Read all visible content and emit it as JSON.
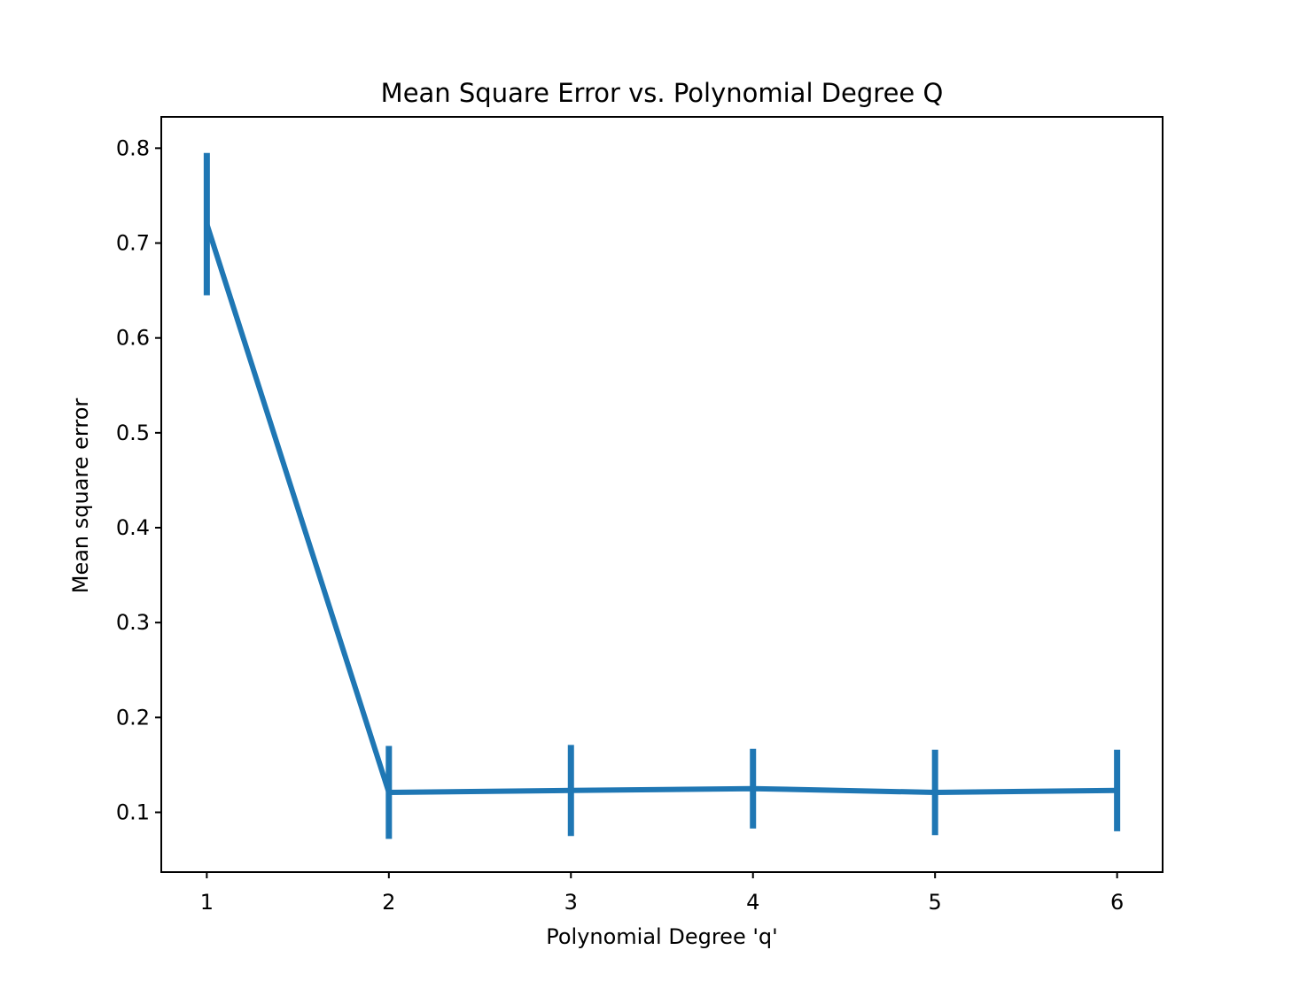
{
  "chart_data": {
    "type": "line",
    "title": "Mean Square Error vs. Polynomial Degree Q",
    "xlabel": "Polynomial Degree 'q'",
    "ylabel": "Mean square error",
    "x": [
      1,
      2,
      3,
      4,
      5,
      6
    ],
    "series": [
      {
        "values": [
          0.72,
          0.121,
          0.123,
          0.125,
          0.121,
          0.123
        ],
        "error": [
          0.075,
          0.049,
          0.048,
          0.042,
          0.045,
          0.043
        ],
        "color": "#1f77b4"
      }
    ],
    "xlim": [
      0.75,
      6.25
    ],
    "ylim": [
      0.037,
      0.833
    ],
    "xticks": [
      "1",
      "2",
      "3",
      "4",
      "5",
      "6"
    ],
    "yticks": [
      "0.1",
      "0.2",
      "0.3",
      "0.4",
      "0.5",
      "0.6",
      "0.7",
      "0.8"
    ],
    "grid": false,
    "legend": "none"
  }
}
